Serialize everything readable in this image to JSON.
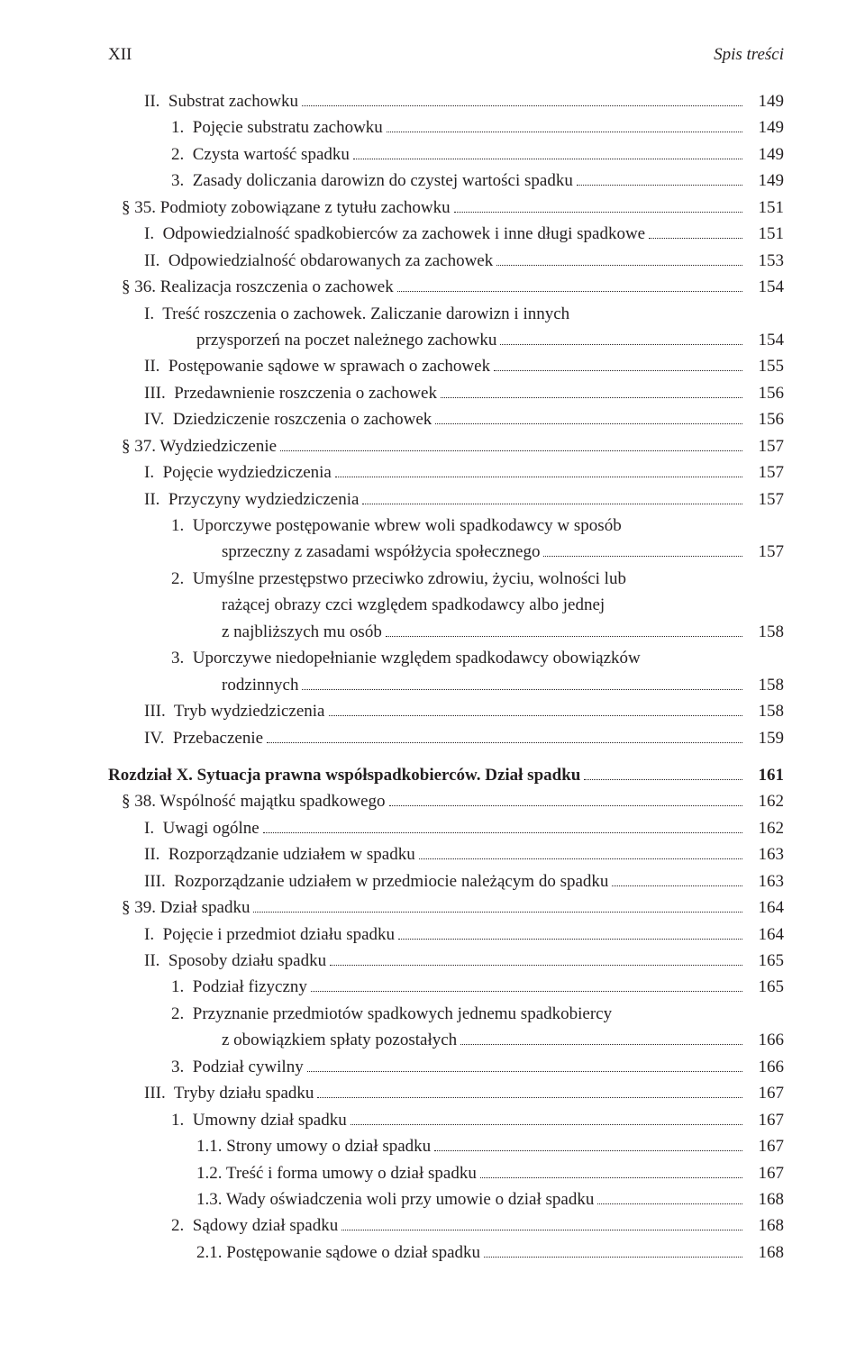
{
  "page_number": "XII",
  "section_title": "Spis treści",
  "entries": [
    {
      "indent": "indent-0",
      "label": "II.  Substrat zachowku",
      "page": "149"
    },
    {
      "indent": "indent-1",
      "label": "1.  Pojęcie substratu zachowku",
      "page": "149"
    },
    {
      "indent": "indent-1",
      "label": "2.  Czysta wartość spadku",
      "page": "149"
    },
    {
      "indent": "indent-1",
      "label": "3.  Zasady doliczania darowizn do czystej wartości spadku",
      "page": "149"
    },
    {
      "indent": "indent-sect",
      "label": "§ 35. Podmioty zobowiązane z tytułu zachowku",
      "page": "151"
    },
    {
      "indent": "indent-0",
      "label": "I.  Odpowiedzialność spadkobierców za zachowek i inne długi spadkowe",
      "page": "151",
      "tightdots": true
    },
    {
      "indent": "indent-0",
      "label": "II.  Odpowiedzialność obdarowanych za zachowek",
      "page": "153"
    },
    {
      "indent": "indent-sect",
      "label": "§ 36. Realizacja roszczenia o zachowek",
      "page": "154"
    },
    {
      "indent": "indent-0",
      "label": "I.  Treść roszczenia o zachowek. Zaliczanie darowizn i innych",
      "nodots": true
    },
    {
      "indent": "indent-cont-1",
      "label": "przysporzeń na poczet należnego zachowku",
      "page": "154",
      "is_cont": true
    },
    {
      "indent": "indent-0",
      "label": "II.  Postępowanie sądowe w sprawach o zachowek",
      "page": "155"
    },
    {
      "indent": "indent-0",
      "label": "III.  Przedawnienie roszczenia o zachowek",
      "page": "156"
    },
    {
      "indent": "indent-0",
      "label": "IV.  Dziedziczenie roszczenia o zachowek",
      "page": "156"
    },
    {
      "indent": "indent-sect",
      "label": "§ 37. Wydziedziczenie",
      "page": "157"
    },
    {
      "indent": "indent-0",
      "label": "I.  Pojęcie wydziedziczenia",
      "page": "157"
    },
    {
      "indent": "indent-0",
      "label": "II.  Przyczyny wydziedziczenia",
      "page": "157"
    },
    {
      "indent": "indent-1",
      "label": "1.  Uporczywe postępowanie wbrew woli spadkodawcy w sposób",
      "nodots": true
    },
    {
      "indent": "indent-cont-2",
      "label": "sprzeczny z zasadami współżycia społecznego",
      "page": "157",
      "is_cont": true
    },
    {
      "indent": "indent-1",
      "label": "2.  Umyślne przestępstwo przeciwko zdrowiu, życiu, wolności lub",
      "nodots": true
    },
    {
      "indent": "indent-cont-2",
      "label": "rażącej obrazy czci względem spadkodawcy albo jednej",
      "nodots": true,
      "is_cont": true
    },
    {
      "indent": "indent-cont-2",
      "label": "z najbliższych mu osób",
      "page": "158",
      "is_cont": true
    },
    {
      "indent": "indent-1",
      "label": "3.  Uporczywe niedopełnianie względem spadkodawcy obowiązków",
      "nodots": true
    },
    {
      "indent": "indent-cont-2",
      "label": "rodzinnych",
      "page": "158",
      "is_cont": true
    },
    {
      "indent": "indent-0",
      "label": "III.  Tryb wydziedziczenia",
      "page": "158"
    },
    {
      "indent": "indent-0",
      "label": "IV.  Przebaczenie",
      "page": "159"
    },
    {
      "indent": "",
      "label": "Rozdział X. Sytuacja prawna współspadkobierców. Dział spadku",
      "page": "161",
      "chapter": true
    },
    {
      "indent": "indent-sect",
      "label": "§ 38. Wspólność majątku spadkowego",
      "page": "162"
    },
    {
      "indent": "indent-0",
      "label": "I.  Uwagi ogólne",
      "page": "162"
    },
    {
      "indent": "indent-0",
      "label": "II.  Rozporządzanie udziałem w spadku",
      "page": "163"
    },
    {
      "indent": "indent-0",
      "label": "III.  Rozporządzanie udziałem w przedmiocie należącym do spadku",
      "page": "163"
    },
    {
      "indent": "indent-sect",
      "label": "§ 39. Dział spadku",
      "page": "164"
    },
    {
      "indent": "indent-0",
      "label": "I.  Pojęcie i przedmiot działu spadku",
      "page": "164"
    },
    {
      "indent": "indent-0",
      "label": "II.  Sposoby działu spadku",
      "page": "165"
    },
    {
      "indent": "indent-1",
      "label": "1.  Podział fizyczny",
      "page": "165"
    },
    {
      "indent": "indent-1",
      "label": "2.  Przyznanie przedmiotów spadkowych jednemu spadkobiercy",
      "nodots": true
    },
    {
      "indent": "indent-cont-2",
      "label": "z obowiązkiem spłaty pozostałych",
      "page": "166",
      "is_cont": true
    },
    {
      "indent": "indent-1",
      "label": "3.  Podział cywilny",
      "page": "166"
    },
    {
      "indent": "indent-0",
      "label": "III.  Tryby działu spadku",
      "page": "167"
    },
    {
      "indent": "indent-1",
      "label": "1.  Umowny dział spadku",
      "page": "167"
    },
    {
      "indent": "indent-2",
      "label": "1.1. Strony umowy o dział spadku",
      "page": "167"
    },
    {
      "indent": "indent-2",
      "label": "1.2. Treść i forma umowy o dział spadku",
      "page": "167"
    },
    {
      "indent": "indent-2",
      "label": "1.3. Wady oświadczenia woli przy umowie o dział spadku",
      "page": "168"
    },
    {
      "indent": "indent-1",
      "label": "2.  Sądowy dział spadku",
      "page": "168"
    },
    {
      "indent": "indent-2",
      "label": "2.1. Postępowanie sądowe o dział spadku",
      "page": "168"
    }
  ]
}
